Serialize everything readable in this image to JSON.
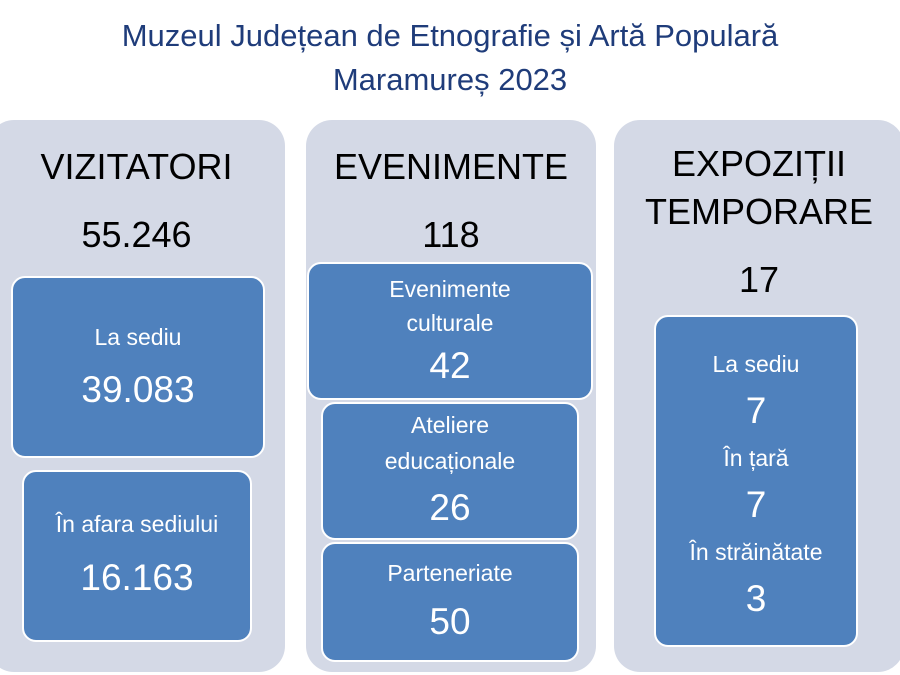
{
  "title": {
    "line1": "Muzeul Județean de Etnografie și Artă Populară",
    "line2": "Maramureș 2023"
  },
  "colors": {
    "title": "#1f3c7a",
    "column_background": "#d4d9e6",
    "box_fill": "#4f81bd",
    "box_border": "#ffffff"
  },
  "visitors": {
    "heading": "VIZITATORI",
    "total": "55.246",
    "boxes": [
      {
        "label": "La sediu",
        "value": "39.083"
      },
      {
        "label": "În afara sediului",
        "value": "16.163"
      }
    ]
  },
  "events": {
    "heading": "EVENIMENTE",
    "total": "118",
    "boxes": [
      {
        "label_line1": "Evenimente",
        "label_line2": "culturale",
        "value": "42"
      },
      {
        "label_line1": "Ateliere",
        "label_line2": "educaționale",
        "value": "26"
      },
      {
        "label_line1": "Parteneriate",
        "value": "50"
      }
    ]
  },
  "exhibitions": {
    "heading_line1": "EXPOZIȚII",
    "heading_line2": "TEMPORARE",
    "total": "17",
    "items": [
      {
        "label": "La sediu",
        "value": "7"
      },
      {
        "label": "În țară",
        "value": "7"
      },
      {
        "label": "În străinătate",
        "value": "3"
      }
    ]
  }
}
